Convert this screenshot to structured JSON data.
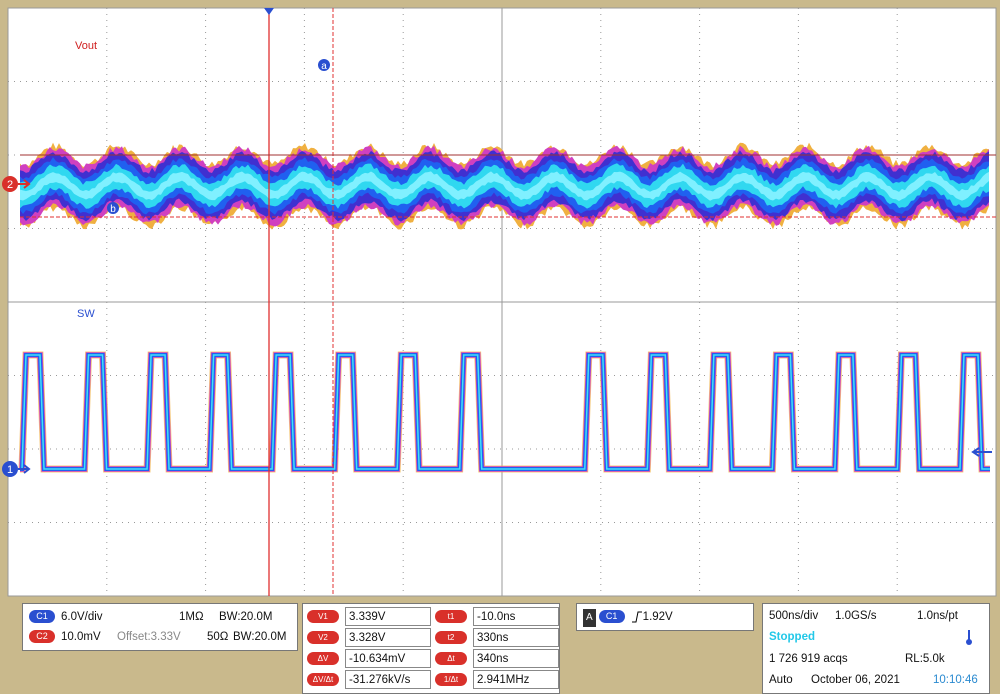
{
  "traces": [
    {
      "label": "Vout",
      "marker": "2"
    },
    {
      "label": "SW",
      "marker": "1"
    }
  ],
  "cursor_markers": [
    "a",
    "b"
  ],
  "channels": [
    {
      "badge": "C1",
      "scale": "6.0V/div",
      "impedance": "1MΩ",
      "bandwidth": "BW:20.0M"
    },
    {
      "badge": "C2",
      "scale": "10.0mV",
      "offset": "Offset:3.33V",
      "impedance": "50Ω",
      "bandwidth": "BW:20.0M"
    }
  ],
  "cursors": {
    "voltage": [
      {
        "label": "V1",
        "value": "3.339V"
      },
      {
        "label": "V2",
        "value": "3.328V"
      },
      {
        "label": "ΔV",
        "value": "-10.634mV"
      },
      {
        "label": "ΔV/Δt",
        "value": "-31.276kV/s"
      }
    ],
    "time": [
      {
        "label": "t1",
        "value": "-10.0ns"
      },
      {
        "label": "t2",
        "value": "330ns"
      },
      {
        "label": "Δt",
        "value": "340ns"
      },
      {
        "label": "1/Δt",
        "value": "2.941MHz"
      }
    ]
  },
  "trigger": {
    "mode": "A",
    "source": "C1",
    "level": "1.92V"
  },
  "acquisition": {
    "timebase": "500ns/div",
    "sample_rate": "1.0GS/s",
    "resolution": "1.0ns/pt",
    "state": "Stopped",
    "acqs": "1 726 919 acqs",
    "record_length": "RL:5.0k",
    "trigger_mode": "Auto",
    "date": "October 06, 2021",
    "time": "10:10:46"
  }
}
